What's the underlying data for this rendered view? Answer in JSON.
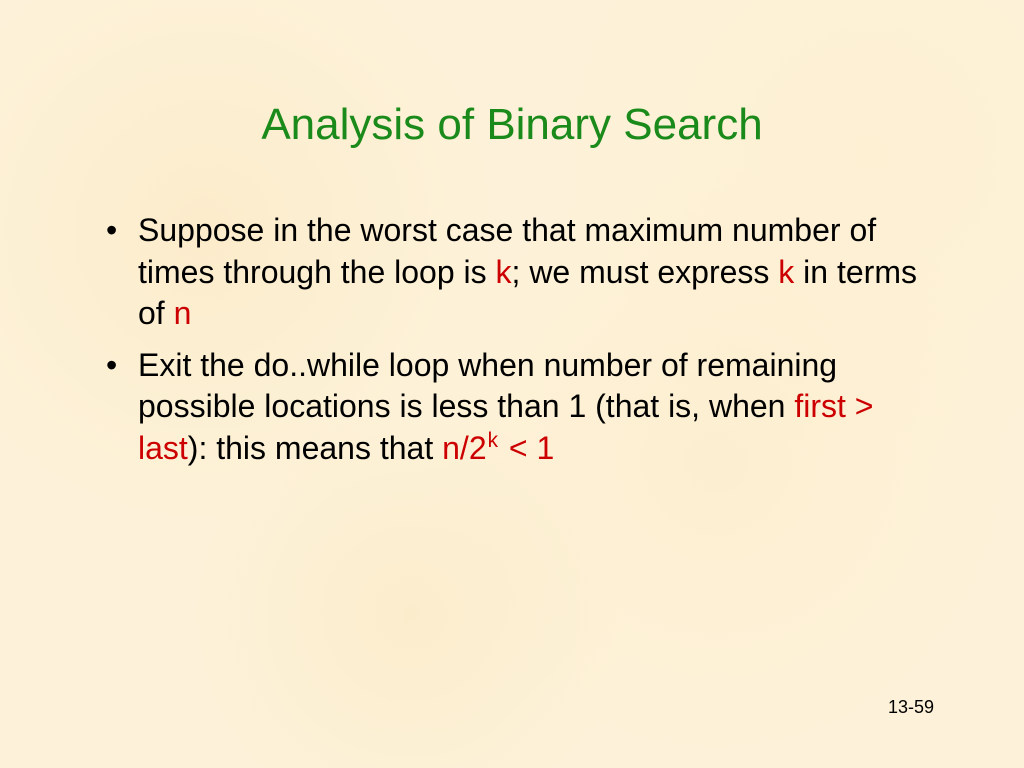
{
  "slide": {
    "title": "Analysis of Binary Search",
    "title_color": "#1a8a1a",
    "title_fontsize": 44,
    "body_fontsize": 32,
    "variable_color": "#cc0000",
    "background_color": "#fdf2d9",
    "page_number": "13-59",
    "bullets": [
      {
        "segments": [
          {
            "text": "Suppose in the worst case that maximum number of times through the loop is ",
            "style": "plain"
          },
          {
            "text": "k",
            "style": "var"
          },
          {
            "text": "; we must express ",
            "style": "plain"
          },
          {
            "text": "k",
            "style": "var"
          },
          {
            "text": " in terms of ",
            "style": "plain"
          },
          {
            "text": "n",
            "style": "var"
          }
        ]
      },
      {
        "segments": [
          {
            "text": "Exit the do..while loop when number of remaining possible locations is less than 1 (that is, when ",
            "style": "plain"
          },
          {
            "text": "first > last",
            "style": "var"
          },
          {
            "text": "): this means that ",
            "style": "plain"
          },
          {
            "text": "n/2",
            "style": "var"
          },
          {
            "text": "k",
            "style": "var-sup"
          },
          {
            "text": " < 1",
            "style": "var"
          }
        ]
      }
    ]
  }
}
